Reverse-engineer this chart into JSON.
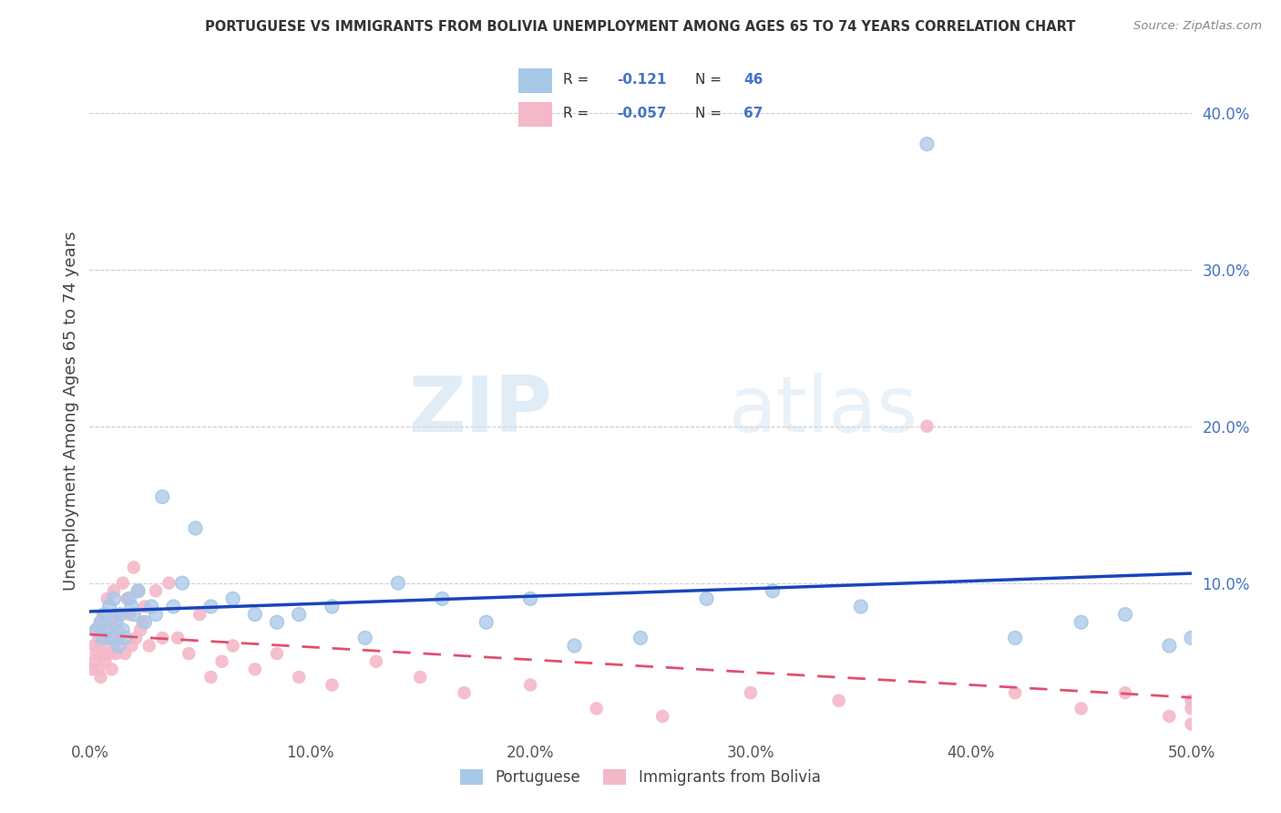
{
  "title": "PORTUGUESE VS IMMIGRANTS FROM BOLIVIA UNEMPLOYMENT AMONG AGES 65 TO 74 YEARS CORRELATION CHART",
  "source": "Source: ZipAtlas.com",
  "ylabel": "Unemployment Among Ages 65 to 74 years",
  "xlim": [
    0,
    0.5
  ],
  "ylim": [
    0,
    0.42
  ],
  "xticks": [
    0.0,
    0.1,
    0.2,
    0.3,
    0.4,
    0.5
  ],
  "xticklabels": [
    "0.0%",
    "10.0%",
    "20.0%",
    "30.0%",
    "40.0%",
    "50.0%"
  ],
  "yticks": [
    0.0,
    0.1,
    0.2,
    0.3,
    0.4
  ],
  "yticklabels": [
    "",
    "10.0%",
    "20.0%",
    "30.0%",
    "40.0%"
  ],
  "blue_color": "#a8c8e8",
  "pink_color": "#f4b8c8",
  "trend_blue": "#1a44bb",
  "trend_pink": "#e05070",
  "watermark_zip": "ZIP",
  "watermark_atlas": "atlas",
  "legend_label1": "Portuguese",
  "legend_label2": "Immigrants from Bolivia",
  "portuguese_x": [
    0.003,
    0.005,
    0.006,
    0.007,
    0.008,
    0.009,
    0.01,
    0.011,
    0.012,
    0.013,
    0.014,
    0.015,
    0.016,
    0.018,
    0.019,
    0.02,
    0.022,
    0.025,
    0.028,
    0.03,
    0.033,
    0.038,
    0.042,
    0.048,
    0.055,
    0.065,
    0.075,
    0.085,
    0.095,
    0.11,
    0.125,
    0.14,
    0.16,
    0.18,
    0.2,
    0.22,
    0.25,
    0.28,
    0.31,
    0.35,
    0.38,
    0.42,
    0.45,
    0.47,
    0.49,
    0.5
  ],
  "portuguese_y": [
    0.07,
    0.075,
    0.065,
    0.08,
    0.07,
    0.085,
    0.065,
    0.09,
    0.075,
    0.06,
    0.08,
    0.07,
    0.065,
    0.09,
    0.085,
    0.08,
    0.095,
    0.075,
    0.085,
    0.08,
    0.155,
    0.085,
    0.1,
    0.135,
    0.085,
    0.09,
    0.08,
    0.075,
    0.08,
    0.085,
    0.065,
    0.1,
    0.09,
    0.075,
    0.09,
    0.06,
    0.065,
    0.09,
    0.095,
    0.085,
    0.38,
    0.065,
    0.075,
    0.08,
    0.06,
    0.065
  ],
  "bolivia_x": [
    0.001,
    0.002,
    0.002,
    0.003,
    0.003,
    0.004,
    0.004,
    0.005,
    0.005,
    0.005,
    0.006,
    0.006,
    0.007,
    0.007,
    0.008,
    0.008,
    0.009,
    0.009,
    0.01,
    0.01,
    0.011,
    0.011,
    0.012,
    0.012,
    0.013,
    0.014,
    0.015,
    0.016,
    0.017,
    0.018,
    0.019,
    0.02,
    0.021,
    0.022,
    0.023,
    0.024,
    0.025,
    0.027,
    0.03,
    0.033,
    0.036,
    0.04,
    0.045,
    0.05,
    0.055,
    0.06,
    0.065,
    0.075,
    0.085,
    0.095,
    0.11,
    0.13,
    0.15,
    0.17,
    0.2,
    0.23,
    0.26,
    0.3,
    0.34,
    0.38,
    0.42,
    0.45,
    0.47,
    0.49,
    0.5,
    0.5,
    0.5
  ],
  "bolivia_y": [
    0.045,
    0.06,
    0.05,
    0.055,
    0.07,
    0.045,
    0.065,
    0.06,
    0.04,
    0.075,
    0.055,
    0.08,
    0.065,
    0.05,
    0.07,
    0.09,
    0.055,
    0.065,
    0.075,
    0.045,
    0.095,
    0.06,
    0.055,
    0.08,
    0.07,
    0.065,
    0.1,
    0.055,
    0.09,
    0.08,
    0.06,
    0.11,
    0.065,
    0.095,
    0.07,
    0.075,
    0.085,
    0.06,
    0.095,
    0.065,
    0.1,
    0.065,
    0.055,
    0.08,
    0.04,
    0.05,
    0.06,
    0.045,
    0.055,
    0.04,
    0.035,
    0.05,
    0.04,
    0.03,
    0.035,
    0.02,
    0.015,
    0.03,
    0.025,
    0.2,
    0.03,
    0.02,
    0.03,
    0.015,
    0.025,
    0.01,
    0.02
  ]
}
